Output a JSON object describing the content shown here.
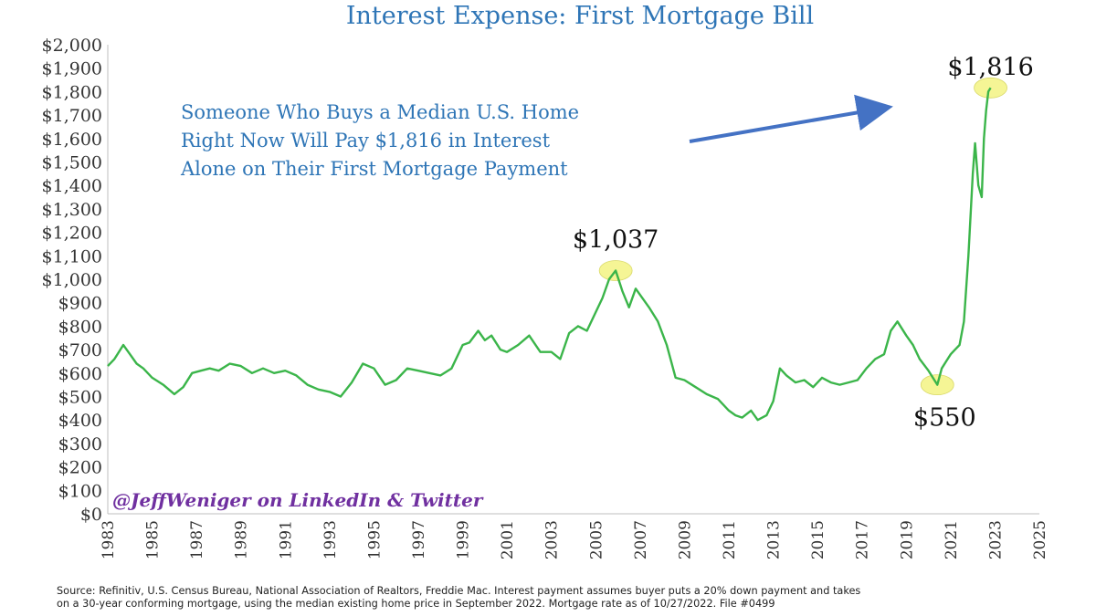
{
  "title": "Interest Expense: First Mortgage Bill",
  "annotation": {
    "lines": [
      "Someone Who Buys a Median U.S. Home",
      "Right Now Will Pay $1,816 in Interest",
      "Alone on Their First Mortgage Payment"
    ]
  },
  "watermark": "@JeffWeniger on LinkedIn & Twitter",
  "source_lines": [
    "Source: Refinitiv, U.S. Census Bureau, National Association of Realtors, Freddie Mac. Interest payment assumes buyer puts a 20% down payment and takes",
    "on a 30-year conforming mortgage, using the median existing home price in September 2022. Mortgage rate as of 10/27/2022. File #0499"
  ],
  "colors": {
    "line": "#3BB54A",
    "title": "#2E75B6",
    "annotation": "#2E75B6",
    "arrow": "#4472C4",
    "highlight": "#F4F48A",
    "watermark": "#7030A0"
  },
  "chart_data": {
    "type": "line",
    "title": "Interest Expense: First Mortgage Bill",
    "xlabel": "",
    "ylabel": "",
    "xlim": [
      1983,
      2025
    ],
    "ylim": [
      0,
      2000
    ],
    "grid": false,
    "y_ticks": [
      0,
      100,
      200,
      300,
      400,
      500,
      600,
      700,
      800,
      900,
      1000,
      1100,
      1200,
      1300,
      1400,
      1500,
      1600,
      1700,
      1800,
      1900,
      2000
    ],
    "y_tick_labels": [
      "$0",
      "$100",
      "$200",
      "$300",
      "$400",
      "$500",
      "$600",
      "$700",
      "$800",
      "$900",
      "$1,000",
      "$1,100",
      "$1,200",
      "$1,300",
      "$1,400",
      "$1,500",
      "$1,600",
      "$1,700",
      "$1,800",
      "$1,900",
      "$2,000"
    ],
    "x_ticks": [
      1983,
      1985,
      1987,
      1989,
      1991,
      1993,
      1995,
      1997,
      1999,
      2001,
      2003,
      2005,
      2007,
      2009,
      2011,
      2013,
      2015,
      2017,
      2019,
      2021,
      2023,
      2025
    ],
    "x_tick_labels": [
      "1983",
      "1985",
      "1987",
      "1989",
      "1991",
      "1993",
      "1995",
      "1997",
      "1999",
      "2001",
      "2003",
      "2005",
      "2007",
      "2009",
      "2011",
      "2013",
      "2015",
      "2017",
      "2019",
      "2021",
      "2023",
      "2025"
    ],
    "series": [
      {
        "x": [
          1983.0,
          1983.3,
          1983.7,
          1984.0,
          1984.3,
          1984.6,
          1985.0,
          1985.5,
          1986.0,
          1986.4,
          1986.8,
          1987.2,
          1987.6,
          1988.0,
          1988.5,
          1989.0,
          1989.5,
          1990.0,
          1990.5,
          1991.0,
          1991.5,
          1992.0,
          1992.5,
          1993.0,
          1993.5,
          1994.0,
          1994.5,
          1995.0,
          1995.5,
          1996.0,
          1996.5,
          1997.0,
          1997.5,
          1998.0,
          1998.5,
          1999.0,
          1999.3,
          1999.7,
          2000.0,
          2000.3,
          2000.7,
          2001.0,
          2001.5,
          2002.0,
          2002.5,
          2003.0,
          2003.4,
          2003.8,
          2004.2,
          2004.6,
          2005.0,
          2005.3,
          2005.6,
          2005.9,
          2006.2,
          2006.5,
          2006.8,
          2007.1,
          2007.4,
          2007.8,
          2008.2,
          2008.6,
          2009.0,
          2009.5,
          2010.0,
          2010.5,
          2011.0,
          2011.3,
          2011.6,
          2012.0,
          2012.3,
          2012.7,
          2013.0,
          2013.3,
          2013.6,
          2014.0,
          2014.4,
          2014.8,
          2015.2,
          2015.6,
          2016.0,
          2016.4,
          2016.8,
          2017.2,
          2017.6,
          2018.0,
          2018.3,
          2018.6,
          2019.0,
          2019.3,
          2019.6,
          2020.0,
          2020.2,
          2020.4,
          2020.6,
          2020.8,
          2021.0,
          2021.2,
          2021.4,
          2021.6,
          2021.8,
          2022.0,
          2022.1,
          2022.25,
          2022.4,
          2022.5,
          2022.6,
          2022.7,
          2022.8
        ],
        "y": [
          630,
          660,
          720,
          680,
          640,
          620,
          580,
          550,
          510,
          540,
          600,
          610,
          620,
          610,
          640,
          630,
          600,
          620,
          600,
          610,
          590,
          550,
          530,
          520,
          500,
          560,
          640,
          620,
          550,
          570,
          620,
          610,
          600,
          590,
          620,
          720,
          730,
          780,
          740,
          760,
          700,
          690,
          720,
          760,
          690,
          690,
          660,
          770,
          800,
          780,
          860,
          920,
          1000,
          1037,
          950,
          880,
          960,
          920,
          880,
          820,
          720,
          580,
          570,
          540,
          510,
          490,
          440,
          420,
          410,
          440,
          400,
          420,
          480,
          620,
          590,
          560,
          570,
          540,
          580,
          560,
          550,
          560,
          570,
          620,
          660,
          680,
          780,
          820,
          760,
          720,
          660,
          610,
          580,
          550,
          620,
          650,
          680,
          700,
          720,
          820,
          1100,
          1450,
          1580,
          1400,
          1350,
          1600,
          1720,
          1800,
          1816
        ]
      }
    ],
    "annotations": [
      {
        "label": "$1,037",
        "x": 2005.9,
        "y": 1037
      },
      {
        "label": "$550",
        "x": 2020.4,
        "y": 550
      },
      {
        "label": "$1,816",
        "x": 2022.8,
        "y": 1816
      }
    ]
  }
}
